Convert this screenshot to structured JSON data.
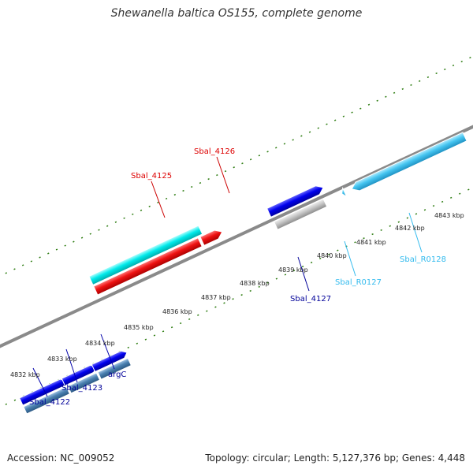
{
  "title": "Shewanella baltica OS155, complete genome",
  "footer": {
    "accession": "Accession: NC_009052",
    "summary": "Topology: circular; Length: 5,127,376 bp; Genes: 4,448"
  },
  "colors": {
    "backbone": "#8a8a8a",
    "ticks": "#2e7d12",
    "plus_cds": "#0000ee",
    "minus_cds": "#4a80b0",
    "trna_plus": "#00eaea",
    "rrna_plus": "#ee1111",
    "trna_minus": "#44c4f0",
    "pseudo": "#bdbdbd"
  },
  "axis_labels": [
    "4832 kbp",
    "4833 kbp",
    "4834 kbp",
    "4835 kbp",
    "4836 kbp",
    "4837 kbp",
    "4838 kbp",
    "4839 kbp",
    "4840 kbp",
    "4841 kbp",
    "4842 kbp",
    "4843 kbp"
  ],
  "gene_labels": [
    {
      "text": "Sbal_4122",
      "color": "#000099"
    },
    {
      "text": "Sbal_4123",
      "color": "#000099"
    },
    {
      "text": "argC",
      "color": "#000099"
    },
    {
      "text": "Sbal_4125",
      "color": "#dd0000"
    },
    {
      "text": "Sbal_4126",
      "color": "#dd0000"
    },
    {
      "text": "Sbal_4127",
      "color": "#000099"
    },
    {
      "text": "Sbal_R0127",
      "color": "#33bbee"
    },
    {
      "text": "Sbal_R0128",
      "color": "#33bbee"
    }
  ]
}
